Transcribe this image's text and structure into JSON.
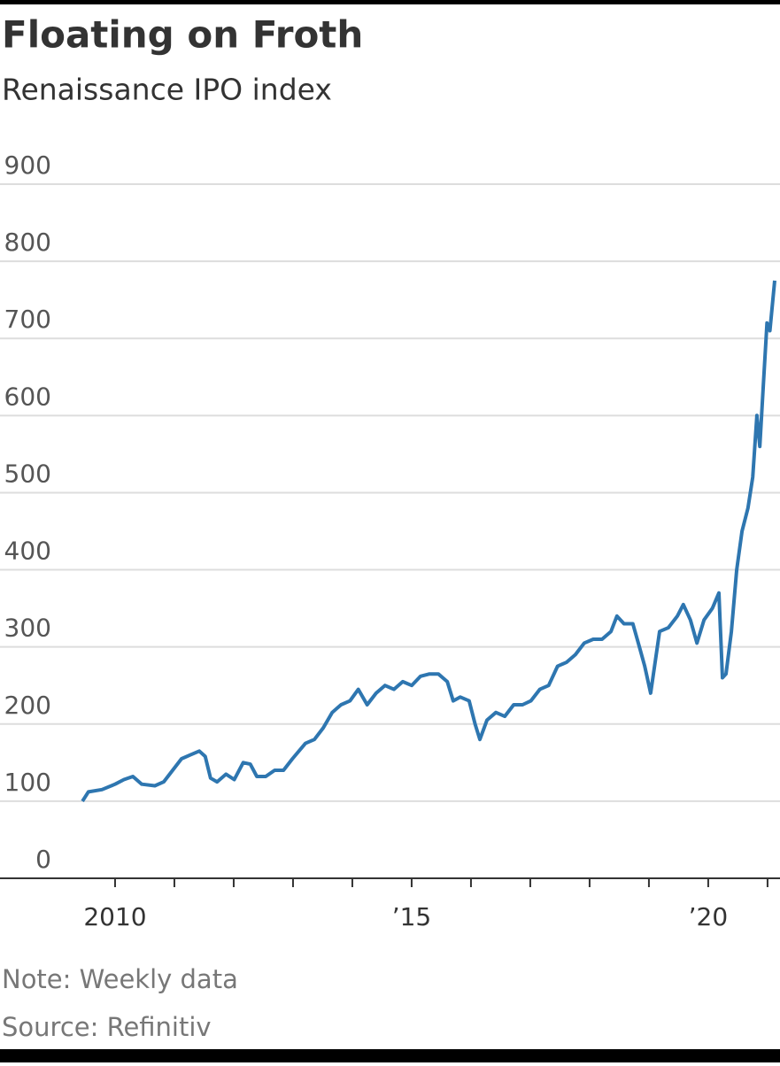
{
  "chart_data": {
    "type": "line",
    "title": "Floating on Froth",
    "subtitle": "Renaissance IPO index",
    "note": "Note: Weekly data",
    "source": "Source: Refinitiv",
    "x": [
      2009.45,
      2009.55,
      2009.78,
      2010.0,
      2010.15,
      2010.3,
      2010.45,
      2010.67,
      2010.82,
      2010.97,
      2011.12,
      2011.27,
      2011.42,
      2011.52,
      2011.61,
      2011.72,
      2011.87,
      2012.01,
      2012.16,
      2012.28,
      2012.39,
      2012.54,
      2012.69,
      2012.84,
      2012.99,
      2013.21,
      2013.36,
      2013.51,
      2013.66,
      2013.81,
      2013.96,
      2014.1,
      2014.25,
      2014.4,
      2014.55,
      2014.7,
      2014.85,
      2015.0,
      2015.15,
      2015.3,
      2015.45,
      2015.6,
      2015.7,
      2015.82,
      2015.97,
      2016.07,
      2016.15,
      2016.27,
      2016.42,
      2016.57,
      2016.72,
      2016.87,
      2017.01,
      2017.16,
      2017.31,
      2017.46,
      2017.61,
      2017.76,
      2017.91,
      2018.06,
      2018.21,
      2018.36,
      2018.46,
      2018.58,
      2018.73,
      2018.84,
      2018.93,
      2019.03,
      2019.18,
      2019.33,
      2019.48,
      2019.58,
      2019.7,
      2019.81,
      2019.93,
      2020.07,
      2020.18,
      2020.24,
      2020.3,
      2020.39,
      2020.48,
      2020.57,
      2020.67,
      2020.75,
      2020.82,
      2020.87,
      2020.93,
      2020.99,
      2021.04,
      2021.12
    ],
    "series": [
      {
        "name": "Renaissance IPO index",
        "color": "#2e76b0",
        "values": [
          100,
          112,
          115,
          122,
          128,
          132,
          122,
          120,
          125,
          140,
          155,
          160,
          165,
          158,
          130,
          125,
          135,
          128,
          150,
          148,
          132,
          132,
          140,
          140,
          155,
          175,
          180,
          195,
          215,
          225,
          230,
          245,
          225,
          240,
          250,
          245,
          255,
          250,
          262,
          265,
          265,
          255,
          230,
          235,
          230,
          200,
          180,
          205,
          215,
          210,
          225,
          225,
          230,
          245,
          250,
          275,
          280,
          290,
          305,
          310,
          310,
          320,
          340,
          330,
          330,
          300,
          275,
          240,
          320,
          325,
          340,
          355,
          335,
          305,
          335,
          350,
          370,
          260,
          265,
          320,
          400,
          450,
          480,
          520,
          600,
          560,
          640,
          720,
          710,
          775
        ]
      }
    ],
    "xlim": [
      2008.06,
      2021.21
    ],
    "xticks": [
      {
        "value": 2010,
        "label": "2010"
      },
      {
        "value": 2015,
        "label": "’15"
      },
      {
        "value": 2020,
        "label": "’20"
      }
    ],
    "xminorticks": [
      2011,
      2012,
      2013,
      2014,
      2016,
      2017,
      2018,
      2019,
      2021
    ],
    "ylim": [
      0,
      900
    ],
    "yticks": [
      0,
      100,
      200,
      300,
      400,
      500,
      600,
      700,
      800,
      900
    ],
    "grid": true
  }
}
